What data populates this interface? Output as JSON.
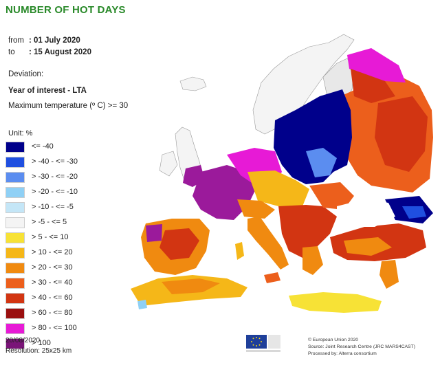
{
  "header": {
    "title": "NUMBER OF HOT DAYS",
    "from_label": "from",
    "from_value": ": 01 July 2020",
    "to_label": "to",
    "to_value": ": 15 August 2020",
    "deviation": "Deviation:",
    "year_of_interest": "Year of interest - LTA",
    "max_temp": "Maximum temperature (º C) >= 30"
  },
  "legend": {
    "unit": "Unit: %",
    "classes": [
      {
        "label": "<= -40",
        "color": "#00008b"
      },
      {
        "label": "> -40 - <= -30",
        "color": "#1f4fe0"
      },
      {
        "label": "> -30 - <= -20",
        "color": "#5b8df0"
      },
      {
        "label": "> -20 - <= -10",
        "color": "#8fd0f5"
      },
      {
        "label": "> -10 - <= -5",
        "color": "#c4e6f7"
      },
      {
        "label": "> -5 - <= 5",
        "color": "#f4f4f4"
      },
      {
        "label": "> 5 - <= 10",
        "color": "#f7e236"
      },
      {
        "label": "> 10 - <= 20",
        "color": "#f5b718"
      },
      {
        "label": "> 20 - <= 30",
        "color": "#f08a10"
      },
      {
        "label": "> 30 - <= 40",
        "color": "#ec5f1c"
      },
      {
        "label": "> 40 - <= 60",
        "color": "#d23512"
      },
      {
        "label": "> 60 - <= 80",
        "color": "#9a0f0f"
      },
      {
        "label": "> 80 - <= 100",
        "color": "#e71ad6"
      },
      {
        "label": "> 100",
        "color": "#7a1478"
      }
    ]
  },
  "footer": {
    "date": "20/08/2020",
    "resolution": "Resolution: 25x25 km",
    "credit_1": "© European Union 2020",
    "credit_2": "Source: Joint Research Centre (JRC MARS4CAST)",
    "credit_3": "Processed by: Alterra consortium"
  }
}
